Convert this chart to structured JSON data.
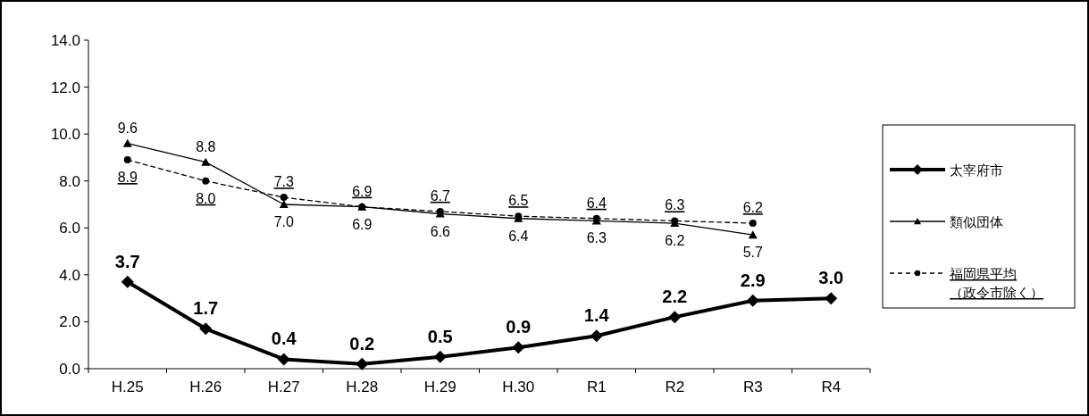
{
  "chart_data": {
    "type": "line",
    "categories": [
      "H.25",
      "H.26",
      "H.27",
      "H.28",
      "H.29",
      "H.30",
      "R1",
      "R2",
      "R3",
      "R4"
    ],
    "series": [
      {
        "name": "太宰府市",
        "color": "#000000",
        "marker": "diamond",
        "line_style": "solid",
        "values": [
          3.7,
          1.7,
          0.4,
          0.2,
          0.5,
          0.9,
          1.4,
          2.2,
          2.9,
          3.0
        ],
        "value_labels": [
          "3.7",
          "1.7",
          "0.4",
          "0.2",
          "0.5",
          "0.9",
          "1.4",
          "2.2",
          "2.9",
          "3.0"
        ]
      },
      {
        "name": "類似団体",
        "color": "#000000",
        "marker": "triangle",
        "line_style": "solid",
        "values": [
          9.6,
          8.8,
          7.0,
          6.9,
          6.6,
          6.4,
          6.3,
          6.2,
          5.7,
          null
        ],
        "value_labels": [
          "9.6",
          "8.8",
          "7.0",
          "6.9",
          "6.6",
          "6.4",
          "6.3",
          "6.2",
          "5.7",
          null
        ]
      },
      {
        "name": "福岡県平均（政令市除く）",
        "color": "#000000",
        "marker": "circle",
        "line_style": "dashed",
        "values": [
          8.9,
          8.0,
          7.3,
          6.9,
          6.7,
          6.5,
          6.4,
          6.3,
          6.2,
          null
        ],
        "value_labels": [
          "8.9",
          "8.0",
          "7.3",
          "6.9",
          "6.7",
          "6.5",
          "6.4",
          "6.3",
          "6.2",
          null
        ]
      }
    ],
    "ylim": [
      0,
      14
    ],
    "yticks": [
      {
        "value": 0,
        "label": "0.0"
      },
      {
        "value": 2,
        "label": "2.0"
      },
      {
        "value": 4,
        "label": "4.0"
      },
      {
        "value": 6,
        "label": "6.0"
      },
      {
        "value": 8,
        "label": "8.0"
      },
      {
        "value": 10,
        "label": "10.0"
      },
      {
        "value": 12,
        "label": "12.0"
      },
      {
        "value": 14,
        "label": "14.0"
      }
    ],
    "grid": false,
    "legend": "right"
  }
}
